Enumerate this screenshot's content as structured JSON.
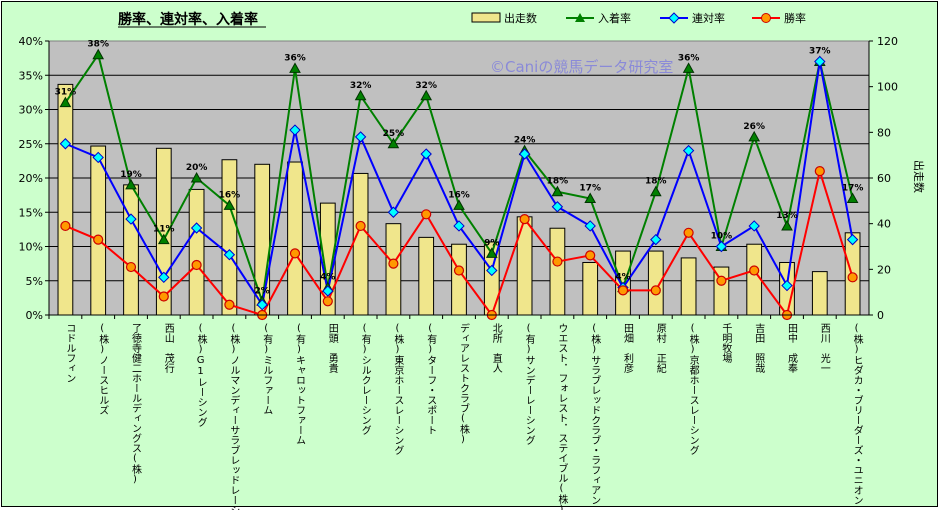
{
  "chart_data": {
    "type": "bar",
    "title": "勝率、連対率、入着率",
    "watermark": "©Caniの競馬データ研究室",
    "y2label": "出走数",
    "ylim": [
      0,
      40
    ],
    "y2lim": [
      0,
      120
    ],
    "yticks": [
      "0%",
      "5%",
      "10%",
      "15%",
      "20%",
      "25%",
      "30%",
      "35%",
      "40%"
    ],
    "y2ticks": [
      "0",
      "20",
      "40",
      "60",
      "80",
      "100",
      "120"
    ],
    "grid": true,
    "legend_position": "top",
    "categories": [
      "コドルフィン",
      "(株)ノースヒルズ",
      "了徳寺健二ホールディングス(株)",
      "西山　茂行",
      "(株)G1レーシング",
      "(株)ノルマンディーサラブレッドレーシング",
      "(有)ミルファーム",
      "(有)キャロットファーム",
      "田頭　勇貴",
      "(有)シルクレーシング",
      "(株)東京ホースレーシング",
      "(有)ターフ・スポート",
      "ディアレストクラブ(株)",
      "北所　直人",
      "(有)サンデーレーシング",
      "ウエスト．フォレスト．ステイブル(株)",
      "(株)サラブレッドクラブ・ラフィアン",
      "田畑　利彦",
      "原村　正紀",
      "(株)京都ホースレーシング",
      "千明牧場",
      "吉田　照哉",
      "田中　成奉",
      "西川　光一",
      "(株)ヒダカ・ブリーダーズ・ユニオン"
    ],
    "series": [
      {
        "name": "出走数",
        "kind": "bar",
        "axis": "y2",
        "color": "#f0e68c",
        "values": [
          101,
          74,
          57,
          73,
          55,
          68,
          66,
          67,
          49,
          62,
          40,
          34,
          31,
          32,
          43,
          38,
          23,
          28,
          28,
          25,
          21,
          31,
          23,
          19,
          36
        ]
      },
      {
        "name": "入着率",
        "kind": "line",
        "axis": "y",
        "color": "#008000",
        "marker": "triangle",
        "values": [
          31,
          38,
          19,
          11,
          20,
          16,
          2,
          36,
          4,
          32,
          25,
          32,
          16,
          9,
          24,
          18,
          17,
          4,
          18,
          36,
          10,
          26,
          13,
          37,
          17
        ]
      },
      {
        "name": "連対率",
        "kind": "line",
        "axis": "y",
        "color": "#0000ff",
        "marker": "diamond",
        "values": [
          25,
          23,
          14,
          5.5,
          12.7,
          8.8,
          1.5,
          27,
          3.5,
          26,
          15,
          23.5,
          13,
          6.5,
          23.5,
          15.8,
          13,
          4,
          11,
          24,
          10,
          13,
          4.3,
          37,
          11
        ]
      },
      {
        "name": "勝率",
        "kind": "line",
        "axis": "y",
        "color": "#ff0000",
        "marker": "circle",
        "values": [
          13,
          11,
          7,
          2.7,
          7.3,
          1.5,
          0,
          9,
          2,
          13,
          7.5,
          14.7,
          6.5,
          0,
          14,
          7.8,
          8.7,
          3.6,
          3.6,
          12,
          5,
          6.5,
          0,
          21,
          5.5
        ]
      }
    ],
    "data_labels": {
      "series": "入着率",
      "values": [
        "31%",
        "38%",
        "19%",
        "11%",
        "20%",
        "16%",
        "2%",
        "36%",
        "4%",
        "32%",
        "25%",
        "32%",
        "16%",
        "9%",
        "24%",
        "18%",
        "17%",
        "4%",
        "18%",
        "36%",
        "10%",
        "26%",
        "13%",
        "37%",
        "17%"
      ]
    }
  }
}
